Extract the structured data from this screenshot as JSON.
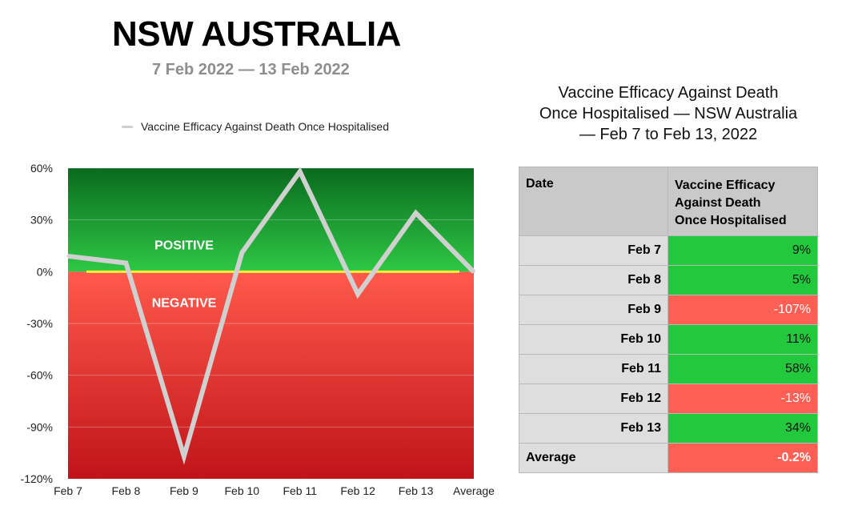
{
  "header": {
    "title": "NSW AUSTRALIA",
    "subtitle": "7 Feb 2022 — 13 Feb 2022"
  },
  "chart_data": {
    "type": "line",
    "categories": [
      "Feb 7",
      "Feb 8",
      "Feb 9",
      "Feb 10",
      "Feb 11",
      "Feb 12",
      "Feb 13",
      "Average"
    ],
    "series": [
      {
        "name": "Vaccine Efficacy Against Death Once Hospitalised",
        "values": [
          9,
          5,
          -107,
          11,
          58,
          -13,
          34,
          -0.2
        ]
      }
    ],
    "ylim": [
      -120,
      60
    ],
    "yticks": [
      60,
      30,
      0,
      -30,
      -60,
      -90,
      -120
    ],
    "ytick_labels": [
      "60%",
      "30%",
      "0%",
      "-30%",
      "-60%",
      "-90%",
      "-120%"
    ],
    "region_labels": {
      "positive": "POSITIVE",
      "negative": "NEGATIVE"
    },
    "legend_position": "top",
    "colors": {
      "line": "#d0d0d0",
      "zero_line": "#f4ee3a",
      "positive_top": "#0a6a1e",
      "positive_bottom": "#2ec845",
      "negative_top": "#ff5a4c",
      "negative_bottom": "#c0141a"
    }
  },
  "table": {
    "title_lines": [
      "Vaccine Efficacy Against Death",
      "Once Hospitalised — NSW Australia",
      "— Feb 7 to Feb 13, 2022"
    ],
    "header_date": "Date",
    "header_efficacy_lines": [
      "Vaccine Efficacy",
      "Against Death",
      "Once Hospitalised"
    ],
    "rows": [
      {
        "date": "Feb 7",
        "value": "9%",
        "status": "pos"
      },
      {
        "date": "Feb 8",
        "value": "5%",
        "status": "pos"
      },
      {
        "date": "Feb 9",
        "value": "-107%",
        "status": "neg"
      },
      {
        "date": "Feb 10",
        "value": "11%",
        "status": "pos"
      },
      {
        "date": "Feb 11",
        "value": "58%",
        "status": "pos"
      },
      {
        "date": "Feb 12",
        "value": "-13%",
        "status": "neg"
      },
      {
        "date": "Feb 13",
        "value": "34%",
        "status": "pos"
      }
    ],
    "average": {
      "date": "Average",
      "value": "-0.2%",
      "status": "neg"
    }
  }
}
